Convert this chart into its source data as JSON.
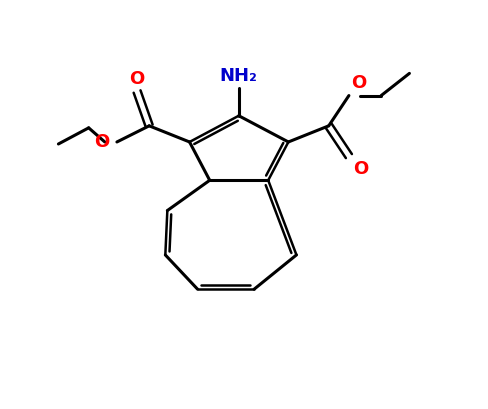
{
  "bg_color": "#ffffff",
  "bond_color": "#000000",
  "O_color": "#ff0000",
  "N_color": "#0000cc",
  "figsize": [
    4.88,
    4.09
  ],
  "dpi": 100,
  "xlim": [
    0,
    10
  ],
  "ylim": [
    0,
    10
  ]
}
